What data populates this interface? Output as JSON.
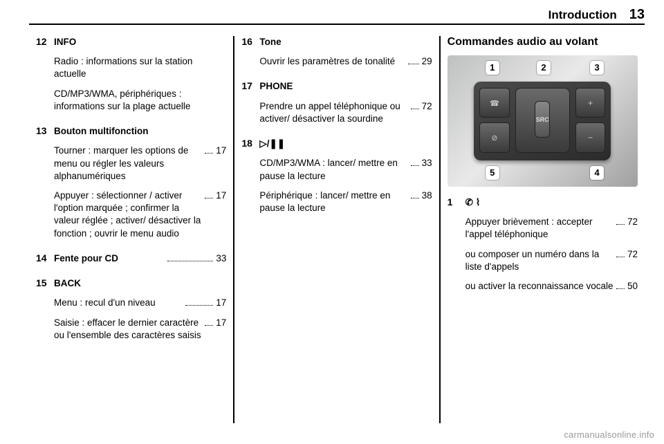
{
  "header": {
    "section": "Introduction",
    "page": "13"
  },
  "col1": {
    "e12": {
      "num": "12",
      "title": "INFO",
      "p1": "Radio : informations sur la station actuelle",
      "p2": "CD/MP3/WMA, périphériques : informations sur la plage actuelle"
    },
    "e13": {
      "num": "13",
      "title": "Bouton multifonction",
      "p1": "Tourner : marquer les options de menu ou régler les valeurs alphanumériques",
      "p1_ref": "17",
      "p2": "Appuyer : sélectionner / activer l'option marquée ; confirmer la valeur réglée ; activer/ désactiver la fonction ; ouvrir le menu audio",
      "p2_ref": "17"
    },
    "e14": {
      "num": "14",
      "title": "Fente pour CD",
      "ref": "33"
    },
    "e15": {
      "num": "15",
      "title": "BACK",
      "p1": "Menu : recul d'un niveau",
      "p1_ref": "17",
      "p2": "Saisie : effacer le dernier caractère ou l'ensemble des caractères saisis",
      "p2_ref": "17"
    }
  },
  "col2": {
    "e16": {
      "num": "16",
      "title": "Tone",
      "p1": "Ouvrir les paramètres de tonalité",
      "p1_ref": "29"
    },
    "e17": {
      "num": "17",
      "title": "PHONE",
      "p1": "Prendre un appel téléphonique ou activer/ désactiver la sourdine",
      "p1_ref": "72"
    },
    "e18": {
      "num": "18",
      "title_icon": "▷/❚❚",
      "p1": "CD/MP3/WMA : lancer/ mettre en pause la lecture",
      "p1_ref": "33",
      "p2": "Périphérique : lancer/ mettre en pause la lecture",
      "p2_ref": "38"
    }
  },
  "col3": {
    "title": "Commandes audio au volant",
    "callouts": {
      "c1": "1",
      "c2": "2",
      "c3": "3",
      "c4": "4",
      "c5": "5"
    },
    "roller_label": "SRC",
    "e1": {
      "num": "1",
      "title_icon": "✆ ⌇",
      "p1": "Appuyer brièvement : accepter l'appel téléphonique",
      "p1_ref": "72",
      "p2": "ou composer un numéro dans la liste d'appels",
      "p2_ref": "72",
      "p3": "ou activer la reconnaissance vocale",
      "p3_ref": "50"
    }
  },
  "watermark": "carmanualsonline.info"
}
